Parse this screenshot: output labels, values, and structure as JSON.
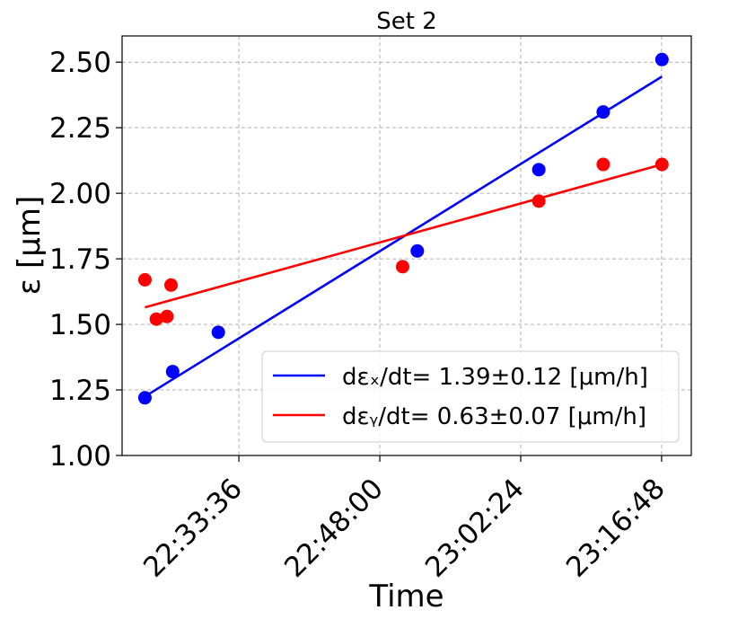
{
  "chart_data": {
    "type": "scatter",
    "title": "Set 2",
    "xlabel": "Time",
    "ylabel": "ε [μm]",
    "xlim": [
      "22:21:40",
      "23:19:50"
    ],
    "ylim": [
      1.0,
      2.6
    ],
    "xticks": [
      "22:33:36",
      "22:48:00",
      "23:02:24",
      "23:16:48"
    ],
    "yticks": [
      "1.00",
      "1.25",
      "1.50",
      "1.75",
      "2.00",
      "2.25",
      "2.50"
    ],
    "grid": true,
    "legend_position": "lower-right",
    "series": [
      {
        "kind": "points",
        "color": "#0000ff",
        "points": [
          {
            "x": "22:24:00",
            "y": 1.22
          },
          {
            "x": "22:26:50",
            "y": 1.32
          },
          {
            "x": "22:31:30",
            "y": 1.47
          },
          {
            "x": "22:51:50",
            "y": 1.78
          },
          {
            "x": "23:04:15",
            "y": 2.09
          },
          {
            "x": "23:10:50",
            "y": 2.31
          },
          {
            "x": "23:16:50",
            "y": 2.51
          }
        ]
      },
      {
        "kind": "points",
        "color": "#ff0000",
        "points": [
          {
            "x": "22:24:00",
            "y": 1.67
          },
          {
            "x": "22:25:10",
            "y": 1.52
          },
          {
            "x": "22:26:15",
            "y": 1.53
          },
          {
            "x": "22:26:40",
            "y": 1.65
          },
          {
            "x": "22:50:20",
            "y": 1.72
          },
          {
            "x": "23:04:15",
            "y": 1.97
          },
          {
            "x": "23:10:50",
            "y": 2.11
          },
          {
            "x": "23:16:50",
            "y": 2.11
          }
        ]
      },
      {
        "kind": "fit",
        "name": "dεₓ/dt= 1.39±0.12 [μm/h]",
        "color": "#0000ff",
        "points": [
          {
            "x": "22:24:00",
            "y": 1.225
          },
          {
            "x": "23:16:50",
            "y": 2.445
          }
        ]
      },
      {
        "kind": "fit",
        "name": "dεᵧ/dt= 0.63±0.07 [μm/h]",
        "color": "#ff0000",
        "points": [
          {
            "x": "22:24:00",
            "y": 1.565
          },
          {
            "x": "23:16:50",
            "y": 2.11
          }
        ]
      }
    ]
  }
}
